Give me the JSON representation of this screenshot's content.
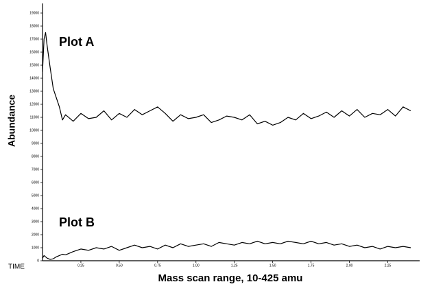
{
  "chart_data": {
    "type": "line",
    "x_label": "Mass scan range, 10-425 amu",
    "y_label": "Abundance",
    "corner_label": "TIME",
    "annotations": [
      "Plot A",
      "Plot B"
    ],
    "x": [
      0,
      0.01,
      0.02,
      0.03,
      0.05,
      0.07,
      0.09,
      0.11,
      0.13,
      0.15,
      0.2,
      0.25,
      0.3,
      0.35,
      0.4,
      0.45,
      0.5,
      0.55,
      0.6,
      0.65,
      0.7,
      0.75,
      0.8,
      0.85,
      0.9,
      0.95,
      1.0,
      1.05,
      1.1,
      1.15,
      1.2,
      1.25,
      1.3,
      1.35,
      1.4,
      1.45,
      1.5,
      1.55,
      1.6,
      1.65,
      1.7,
      1.75,
      1.8,
      1.85,
      1.9,
      1.95,
      2.0,
      2.05,
      2.1,
      2.15,
      2.2,
      2.25,
      2.3,
      2.35,
      2.4
    ],
    "series": [
      {
        "name": "Plot A",
        "color": "#000000",
        "values": [
          14500,
          17000,
          17500,
          16500,
          14800,
          13200,
          12500,
          11800,
          10800,
          11200,
          10700,
          11300,
          10900,
          11000,
          11500,
          10800,
          11300,
          11000,
          11600,
          11200,
          11500,
          11800,
          11300,
          10700,
          11200,
          10900,
          11000,
          11200,
          10600,
          10800,
          11100,
          11000,
          10800,
          11200,
          10500,
          10700,
          10400,
          10600,
          11000,
          10800,
          11300,
          10900,
          11100,
          11400,
          11000,
          11500,
          11100,
          11600,
          11000,
          11300,
          11200,
          11600,
          11100,
          11800,
          11500
        ]
      },
      {
        "name": "Plot B",
        "color": "#000000",
        "values": [
          200,
          400,
          300,
          200,
          100,
          150,
          300,
          400,
          500,
          450,
          700,
          900,
          800,
          1000,
          900,
          1100,
          800,
          1000,
          1200,
          1000,
          1100,
          900,
          1200,
          1000,
          1300,
          1100,
          1200,
          1300,
          1100,
          1400,
          1300,
          1200,
          1400,
          1300,
          1500,
          1300,
          1400,
          1300,
          1500,
          1400,
          1300,
          1500,
          1300,
          1400,
          1200,
          1300,
          1100,
          1200,
          1000,
          1100,
          900,
          1100,
          1000,
          1100,
          1000
        ]
      }
    ],
    "xlim": [
      0,
      2.44
    ],
    "xticks": [
      0.25,
      {
        "value": 0.5,
        "label": "0.50"
      },
      0.75,
      {
        "value": 1,
        "label": "1.00"
      },
      1.25,
      {
        "value": 1.5,
        "label": "1.50"
      },
      1.75,
      {
        "value": 2,
        "label": "2.00"
      },
      2.25
    ],
    "ylim": [
      0,
      19000
    ],
    "yticks": [
      0,
      1000,
      2000,
      3000,
      4000,
      5000,
      6000,
      7000,
      8000,
      9000,
      10000,
      11000,
      12000,
      13000,
      14000,
      15000,
      16000,
      17000,
      18000,
      19000
    ]
  }
}
